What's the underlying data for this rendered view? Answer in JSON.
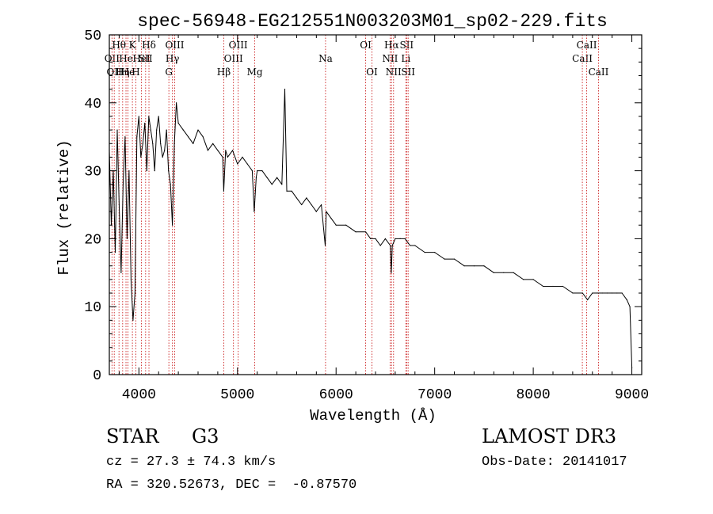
{
  "chart_data": {
    "type": "line",
    "title": "spec-56948-EG212551N003203M01_sp02-229.fits",
    "xlabel": "Wavelength (Å)",
    "ylabel": "Flux (relative)",
    "xlim": [
      3700,
      9100
    ],
    "ylim": [
      0,
      50
    ],
    "xticks": [
      4000,
      5000,
      6000,
      7000,
      8000,
      9000
    ],
    "yticks": [
      0,
      10,
      20,
      30,
      40,
      50
    ],
    "series": [
      {
        "name": "flux",
        "x": [
          3700,
          3720,
          3740,
          3760,
          3780,
          3800,
          3820,
          3840,
          3860,
          3880,
          3900,
          3920,
          3940,
          3960,
          3980,
          4000,
          4020,
          4040,
          4060,
          4080,
          4100,
          4120,
          4140,
          4160,
          4180,
          4200,
          4220,
          4240,
          4260,
          4280,
          4300,
          4320,
          4340,
          4360,
          4380,
          4400,
          4450,
          4500,
          4550,
          4600,
          4650,
          4700,
          4750,
          4800,
          4850,
          4860,
          4880,
          4900,
          4950,
          5000,
          5050,
          5100,
          5150,
          5170,
          5190,
          5200,
          5250,
          5300,
          5350,
          5400,
          5450,
          5480,
          5500,
          5550,
          5600,
          5650,
          5700,
          5750,
          5800,
          5850,
          5890,
          5900,
          5950,
          6000,
          6100,
          6200,
          6300,
          6350,
          6400,
          6450,
          6500,
          6550,
          6560,
          6570,
          6600,
          6650,
          6700,
          6750,
          6800,
          6900,
          7000,
          7100,
          7200,
          7300,
          7400,
          7500,
          7600,
          7700,
          7800,
          7900,
          8000,
          8100,
          8200,
          8300,
          8400,
          8500,
          8550,
          8600,
          8650,
          8700,
          8750,
          8800,
          8850,
          8900,
          8950,
          8980,
          9000
        ],
        "y": [
          33,
          22,
          30,
          18,
          36,
          25,
          15,
          28,
          35,
          20,
          30,
          14,
          8,
          12,
          35,
          38,
          32,
          34,
          37,
          30,
          38,
          36,
          34,
          30,
          36,
          38,
          34,
          32,
          33,
          36,
          30,
          28,
          22,
          34,
          40,
          37,
          36,
          35,
          34,
          36,
          35,
          33,
          34,
          33,
          32,
          27,
          33,
          32,
          33,
          31,
          32,
          31,
          30,
          24,
          29,
          30,
          30,
          29,
          28,
          29,
          28,
          42,
          27,
          27,
          26,
          25,
          26,
          25,
          24,
          25,
          19,
          24,
          23,
          22,
          22,
          21,
          21,
          20,
          20,
          19,
          20,
          19,
          15,
          19,
          20,
          20,
          20,
          19,
          19,
          18,
          18,
          17,
          17,
          16,
          16,
          16,
          15,
          15,
          15,
          14,
          14,
          13,
          13,
          13,
          12,
          12,
          11,
          12,
          12,
          12,
          12,
          12,
          12,
          12,
          11,
          10,
          1
        ]
      }
    ],
    "lines": [
      {
        "wl": 3727,
        "label": "OII",
        "row": 2
      },
      {
        "wl": 3750,
        "label": "OII",
        "row": 3
      },
      {
        "wl": 3798,
        "label": "Hθ",
        "row": 1
      },
      {
        "wl": 3835,
        "label": "Hη",
        "row": 3
      },
      {
        "wl": 3869,
        "label": "He",
        "row": 2
      },
      {
        "wl": 3889,
        "label": "He",
        "row": 3
      },
      {
        "wl": 3934,
        "label": "K",
        "row": 1
      },
      {
        "wl": 3969,
        "label": "H",
        "row": 3
      },
      {
        "wl": 4026,
        "label": "HeI",
        "row": 2
      },
      {
        "wl": 4068,
        "label": "SII",
        "row": 2
      },
      {
        "wl": 4102,
        "label": "Hδ",
        "row": 1
      },
      {
        "wl": 4304,
        "label": "G",
        "row": 3
      },
      {
        "wl": 4340,
        "label": "Hγ",
        "row": 2
      },
      {
        "wl": 4363,
        "label": "OIII",
        "row": 1
      },
      {
        "wl": 4861,
        "label": "Hβ",
        "row": 3
      },
      {
        "wl": 4959,
        "label": "OIII",
        "row": 2
      },
      {
        "wl": 5007,
        "label": "OIII",
        "row": 1
      },
      {
        "wl": 5175,
        "label": "Mg",
        "row": 3
      },
      {
        "wl": 5893,
        "label": "Na",
        "row": 2
      },
      {
        "wl": 6300,
        "label": "OI",
        "row": 1
      },
      {
        "wl": 6364,
        "label": "OI",
        "row": 3
      },
      {
        "wl": 6548,
        "label": "NII",
        "row": 2
      },
      {
        "wl": 6563,
        "label": "Hα",
        "row": 1
      },
      {
        "wl": 6583,
        "label": "NII",
        "row": 3
      },
      {
        "wl": 6708,
        "label": "Li",
        "row": 2
      },
      {
        "wl": 6716,
        "label": "SII",
        "row": 1
      },
      {
        "wl": 6731,
        "label": "SII",
        "row": 3
      },
      {
        "wl": 8498,
        "label": "CaII",
        "row": 2
      },
      {
        "wl": 8542,
        "label": "CaII",
        "row": 1
      },
      {
        "wl": 8662,
        "label": "CaII",
        "row": 3
      }
    ]
  },
  "info": {
    "class": "STAR",
    "subclass": "G3",
    "survey": "LAMOST DR3",
    "cz": "cz = 27.3 ± 74.3 km/s",
    "obs_date": "Obs-Date: 20141017",
    "coords": "RA = 320.52673, DEC =  -0.87570"
  },
  "colors": {
    "line_marker": "#cc2222",
    "axis": "#000000",
    "spectrum": "#000000"
  }
}
